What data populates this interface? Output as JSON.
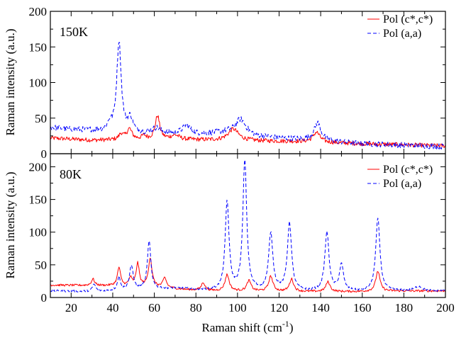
{
  "chart_data": [
    {
      "type": "line",
      "panel_label": "150K",
      "xlabel": "",
      "ylabel": "Raman intensity (a.u.)",
      "xlim": [
        10,
        200
      ],
      "ylim": [
        0,
        200
      ],
      "yticks": [
        0,
        50,
        100,
        150,
        200
      ],
      "xticks": [
        20,
        40,
        60,
        80,
        100,
        120,
        140,
        160,
        180,
        200
      ],
      "show_x_tick_labels": false,
      "legend": "top-right",
      "series": [
        {
          "name": "Pol (c*,c*)",
          "color": "#ff0000",
          "dash": "solid",
          "baseline": [
            [
              10,
              22
            ],
            [
              30,
              19
            ],
            [
              60,
              20
            ],
            [
              90,
              19
            ],
            [
              130,
              17
            ],
            [
              160,
              14
            ],
            [
              200,
              11
            ]
          ],
          "peaks": [
            [
              44,
              8,
              1.2
            ],
            [
              48,
              15,
              1.5
            ],
            [
              55,
              5,
              1.2
            ],
            [
              61.5,
              33,
              1.3
            ],
            [
              70,
              6,
              2.5
            ],
            [
              98,
              16,
              3
            ],
            [
              138,
              14,
              2.0
            ]
          ]
        },
        {
          "name": "Pol (a,a)",
          "color": "#0000ff",
          "dash": "dashed",
          "baseline": [
            [
              10,
              37
            ],
            [
              20,
              34
            ],
            [
              30,
              33
            ],
            [
              40,
              30
            ],
            [
              50,
              28
            ],
            [
              80,
              27
            ],
            [
              95,
              30
            ],
            [
              110,
              24
            ],
            [
              130,
              20
            ],
            [
              160,
              14
            ],
            [
              180,
              12
            ],
            [
              200,
              10
            ]
          ],
          "peaks": [
            [
              38.5,
              10,
              1.2
            ],
            [
              43,
              128,
              1.3
            ],
            [
              48.5,
              20,
              1.5
            ],
            [
              61,
              8,
              2.5
            ],
            [
              75.5,
              12,
              2.5
            ],
            [
              101.5,
              21,
              3
            ],
            [
              138.5,
              25,
              2.0
            ]
          ]
        }
      ]
    },
    {
      "type": "line",
      "panel_label": "80K",
      "xlabel": "Raman shift (cm-1)",
      "ylabel": "Raman intensity (a.u.)",
      "xlim": [
        10,
        200
      ],
      "ylim": [
        0,
        220
      ],
      "yticks": [
        0,
        50,
        100,
        150,
        200
      ],
      "xticks": [
        20,
        40,
        60,
        80,
        100,
        120,
        140,
        160,
        180,
        200
      ],
      "show_x_tick_labels": true,
      "legend": "top-right",
      "series": [
        {
          "name": "Pol (c*,c*)",
          "color": "#ff0000",
          "dash": "solid",
          "baseline": [
            [
              10,
              19
            ],
            [
              40,
              18
            ],
            [
              60,
              16
            ],
            [
              75,
              12
            ],
            [
              90,
              10
            ],
            [
              130,
              9
            ],
            [
              160,
              9
            ],
            [
              180,
              10
            ],
            [
              200,
              10
            ]
          ],
          "peaks": [
            [
              30.5,
              10,
              0.9
            ],
            [
              43,
              28,
              0.9
            ],
            [
              48.5,
              12,
              0.9
            ],
            [
              52,
              35,
              0.9
            ],
            [
              58,
              44,
              1.0
            ],
            [
              65,
              15,
              1.0
            ],
            [
              83.5,
              12,
              1.0
            ],
            [
              95,
              25,
              1.2
            ],
            [
              105.5,
              16,
              1.2
            ],
            [
              116,
              23,
              1.2
            ],
            [
              126,
              19,
              1.2
            ],
            [
              143.5,
              15,
              1.2
            ],
            [
              167.5,
              31,
              1.2
            ]
          ]
        },
        {
          "name": "Pol (a,a)",
          "color": "#0000ff",
          "dash": "dashed",
          "baseline": [
            [
              10,
              10
            ],
            [
              30,
              9
            ],
            [
              60,
              12
            ],
            [
              70,
              14
            ],
            [
              80,
              12
            ],
            [
              90,
              10
            ],
            [
              130,
              9
            ],
            [
              160,
              9
            ],
            [
              180,
              10
            ],
            [
              200,
              10
            ]
          ],
          "peaks": [
            [
              31,
              11,
              0.9
            ],
            [
              43,
              20,
              0.9
            ],
            [
              49,
              37,
              1.1
            ],
            [
              57.5,
              74,
              1.0
            ],
            [
              95,
              136,
              1.1
            ],
            [
              103.5,
              200,
              1.1
            ],
            [
              116,
              88,
              1.2
            ],
            [
              125,
              104,
              1.2
            ],
            [
              143,
              90,
              1.2
            ],
            [
              150,
              40,
              1.2
            ],
            [
              167.5,
              112,
              1.2
            ],
            [
              187,
              7,
              2.0
            ]
          ]
        }
      ]
    }
  ]
}
